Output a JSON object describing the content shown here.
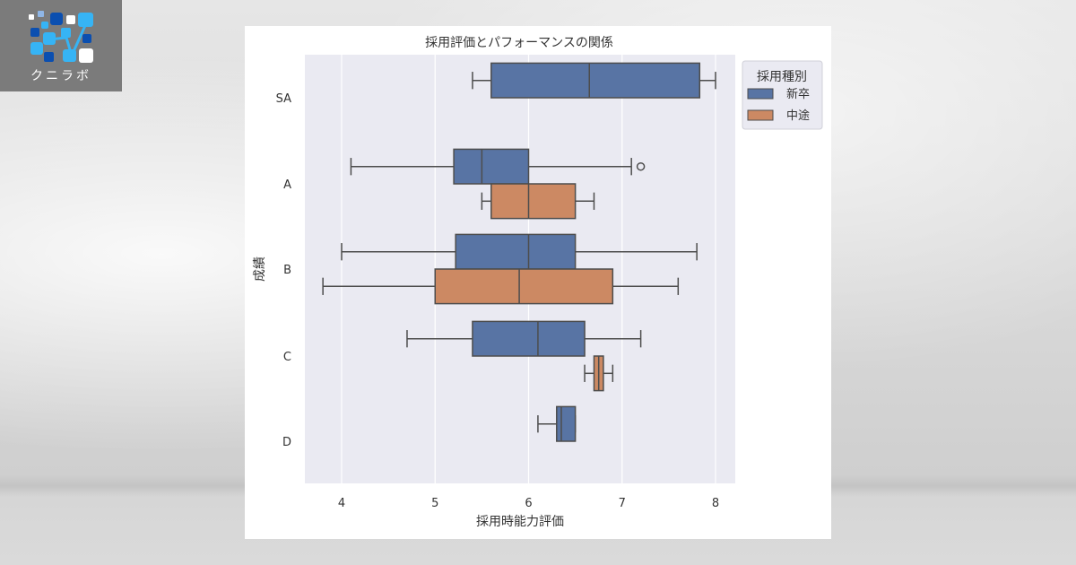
{
  "brand": {
    "name": "クニラボ",
    "logo_icon": "network-dots-logo-icon"
  },
  "chart_data": {
    "type": "boxplot",
    "orientation": "horizontal",
    "title": "採用評価とパフォーマンスの関係",
    "xlabel": "採用時能力評価",
    "ylabel": "成績",
    "xlim": [
      3.6,
      8.2
    ],
    "xticks": [
      4,
      5,
      6,
      7,
      8
    ],
    "xtick_labels": [
      "4",
      "5",
      "6",
      "7",
      "8"
    ],
    "categories": [
      "SA",
      "A",
      "B",
      "C",
      "D"
    ],
    "grid": "vertical",
    "legend": {
      "title": "採用種別",
      "position": "upper right outside",
      "entries": [
        {
          "label": "新卒",
          "color": "#5874a4"
        },
        {
          "label": "中途",
          "color": "#cc8963"
        }
      ]
    },
    "series": [
      {
        "name": "新卒",
        "color": "#5874a4",
        "boxes": [
          {
            "category": "SA",
            "whislo": 5.4,
            "q1": 5.6,
            "med": 6.65,
            "q3": 7.83,
            "whishi": 8.0,
            "fliers": []
          },
          {
            "category": "A",
            "whislo": 4.1,
            "q1": 5.2,
            "med": 5.5,
            "q3": 6.0,
            "whishi": 7.1,
            "fliers": [
              7.2
            ]
          },
          {
            "category": "B",
            "whislo": 4.0,
            "q1": 5.22,
            "med": 6.0,
            "q3": 6.5,
            "whishi": 7.8,
            "fliers": []
          },
          {
            "category": "C",
            "whislo": 4.7,
            "q1": 5.4,
            "med": 6.1,
            "q3": 6.6,
            "whishi": 7.2,
            "fliers": []
          },
          {
            "category": "D",
            "whislo": 6.1,
            "q1": 6.3,
            "med": 6.35,
            "q3": 6.5,
            "whishi": 6.5,
            "fliers": []
          }
        ]
      },
      {
        "name": "中途",
        "color": "#cc8963",
        "boxes": [
          {
            "category": "A",
            "whislo": 5.5,
            "q1": 5.6,
            "med": 6.0,
            "q3": 6.5,
            "whishi": 6.7,
            "fliers": []
          },
          {
            "category": "B",
            "whislo": 3.8,
            "q1": 5.0,
            "med": 5.9,
            "q3": 6.9,
            "whishi": 7.6,
            "fliers": []
          },
          {
            "category": "C",
            "whislo": 6.6,
            "q1": 6.7,
            "med": 6.75,
            "q3": 6.8,
            "whishi": 6.9,
            "fliers": []
          }
        ]
      }
    ]
  },
  "style": {
    "plot_bg": "#eaeaf2",
    "grid_color": "#ffffff",
    "line_color": "#4d4d4d"
  }
}
